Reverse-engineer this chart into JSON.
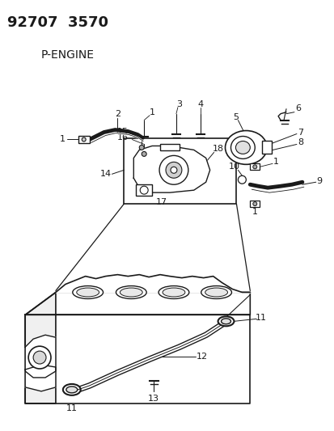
{
  "title": "92707  3570",
  "subtitle": "P-ENGINE",
  "bg": "#ffffff",
  "lc": "#1a1a1a",
  "fs_title": 13,
  "fs_sub": 10,
  "fs_label": 8,
  "figsize": [
    4.14,
    5.33
  ],
  "dpi": 100
}
